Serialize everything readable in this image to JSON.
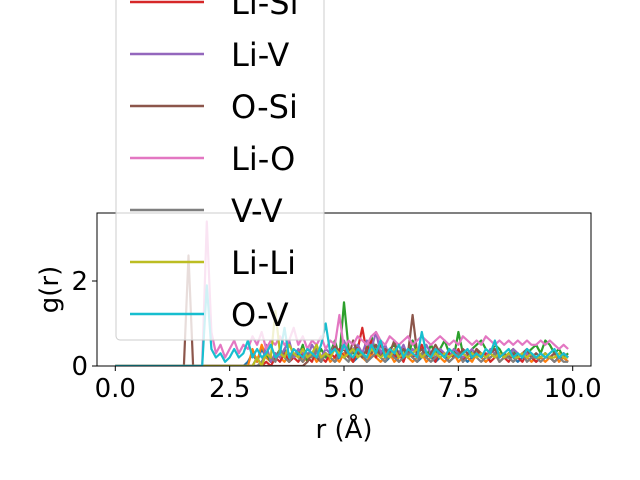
{
  "chart_data": {
    "type": "line",
    "title": "",
    "xlabel": "r (Å)",
    "ylabel": "g(r)",
    "xlim": [
      -0.4,
      10.4
    ],
    "ylim": [
      0,
      3.6
    ],
    "grid": false,
    "legend": {
      "placement": "upper-left, overflowing top of plot, frame clipped at image top"
    },
    "x_ticks": [
      "0.0",
      "2.5",
      "5.0",
      "7.5",
      "10.0"
    ],
    "x_tick_values": [
      0,
      2.5,
      5,
      7.5,
      10
    ],
    "y_ticks": [
      "0",
      "2"
    ],
    "y_tick_values": [
      0,
      2
    ],
    "x": [
      0.0,
      0.5,
      1.0,
      1.5,
      1.6,
      1.7,
      1.8,
      1.9,
      2.0,
      2.1,
      2.2,
      2.3,
      2.4,
      2.5,
      2.6,
      2.7,
      2.8,
      2.9,
      3.0,
      3.1,
      3.2,
      3.3,
      3.4,
      3.5,
      3.6,
      3.7,
      3.8,
      3.9,
      4.0,
      4.1,
      4.2,
      4.3,
      4.4,
      4.5,
      4.6,
      4.7,
      4.8,
      4.9,
      5.0,
      5.1,
      5.2,
      5.3,
      5.4,
      5.5,
      5.6,
      5.7,
      5.8,
      5.9,
      6.0,
      6.1,
      6.2,
      6.3,
      6.4,
      6.5,
      6.6,
      6.7,
      6.8,
      6.9,
      7.0,
      7.1,
      7.2,
      7.3,
      7.4,
      7.5,
      7.6,
      7.7,
      7.8,
      7.9,
      8.0,
      8.1,
      8.2,
      8.3,
      8.4,
      8.5,
      8.6,
      8.7,
      8.8,
      8.9,
      9.0,
      9.1,
      9.2,
      9.3,
      9.4,
      9.5,
      9.6,
      9.7,
      9.8,
      9.9
    ],
    "series": [
      {
        "name": "",
        "color": "#1f77b4",
        "values": [
          0,
          0,
          0,
          0,
          0,
          0,
          0,
          0,
          0,
          0,
          0,
          0,
          0,
          0,
          0,
          0,
          0,
          0.1,
          0.3,
          0.1,
          0.4,
          0.2,
          0.1,
          0.3,
          0.2,
          0.4,
          0.1,
          0.2,
          0.3,
          0.1,
          0.2,
          0.3,
          0.2,
          0.1,
          0.3,
          0.2,
          0.1,
          0.2,
          0.3,
          0.2,
          0.1,
          0.2,
          0.3,
          0.1,
          0.2,
          0.3,
          0.2,
          0.1,
          0.2,
          0.3,
          0.1,
          0.2,
          0.3,
          0.2,
          0.1,
          0.2,
          0.3,
          0.2,
          0.1,
          0.2,
          0.3,
          0.1,
          0.2,
          0.3,
          0.2,
          0.1,
          0.2,
          0.3,
          0.2,
          0.1,
          0.2,
          0.3,
          0.1,
          0.2,
          0.3,
          0.2,
          0.1,
          0.2,
          0.3,
          0.2,
          0.1,
          0.2,
          0.3,
          0.2,
          0.1,
          0.2,
          0.2,
          0.1
        ]
      },
      {
        "name": "",
        "color": "#ff7f0e",
        "values": [
          0,
          0,
          0,
          0,
          0,
          0,
          0,
          0,
          0,
          0,
          0,
          0,
          0,
          0,
          0,
          0,
          0,
          0,
          0.4,
          0.1,
          0.5,
          0.2,
          0.1,
          0.3,
          0.2,
          0.1,
          0.3,
          0.2,
          0.4,
          0.1,
          0.2,
          0.3,
          0.1,
          0.2,
          0.3,
          0.1,
          0.2,
          0.1,
          0.3,
          0.2,
          0.1,
          0.4,
          0.2,
          0.1,
          0.3,
          0.2,
          0.1,
          0.2,
          0.3,
          0.1,
          0.2,
          0.3,
          0.2,
          0.1,
          0.2,
          0.3,
          0.1,
          0.2,
          0.3,
          0.2,
          0.1,
          0.2,
          0.3,
          0.1,
          0.2,
          0.2,
          0.1,
          0.3,
          0.2,
          0.1,
          0.2,
          0.3,
          0.1,
          0.2,
          0.2,
          0.1,
          0.2,
          0.3,
          0.2,
          0.1,
          0.2,
          0.2,
          0.1,
          0.2,
          0.3,
          0.1,
          0.2,
          0.1
        ]
      },
      {
        "name": "",
        "color": "#2ca02c",
        "values": [
          0,
          0,
          0,
          0,
          0,
          0,
          0,
          0,
          0,
          0,
          0,
          0,
          0,
          0,
          0,
          0,
          0,
          0,
          0,
          0.2,
          0,
          0.3,
          0.1,
          0.2,
          0.4,
          0.2,
          0.1,
          0.3,
          0.2,
          0.5,
          0.1,
          0.3,
          0.2,
          0.4,
          0.2,
          0.3,
          0.6,
          0.2,
          1.5,
          0.4,
          0.3,
          0.5,
          0.2,
          0.4,
          0.7,
          0.3,
          0.6,
          0.2,
          0.4,
          0.5,
          0.3,
          0.4,
          0.2,
          0.6,
          0.3,
          0.4,
          0.2,
          0.5,
          0.3,
          0.4,
          0.6,
          0.3,
          0.2,
          0.8,
          0.3,
          0.2,
          0.4,
          0.5,
          0.6,
          0.4,
          0.3,
          0.5,
          0.4,
          0.2,
          0.3,
          0.4,
          0.2,
          0.3,
          0.3,
          0.4,
          0.5,
          0.3,
          0.6,
          0.5,
          0.3,
          0.4,
          0.2,
          0.3
        ]
      },
      {
        "name": "Li-Si",
        "color": "#d62728",
        "values": [
          0,
          0,
          0,
          0,
          0,
          0,
          0,
          0,
          0,
          0,
          0,
          0,
          0,
          0,
          0,
          0,
          0,
          0,
          0,
          0,
          0,
          0.1,
          0,
          0.2,
          0.1,
          0.3,
          0.1,
          0.2,
          0.1,
          0.3,
          0.2,
          0.1,
          0.4,
          0.2,
          0.1,
          0.3,
          0.2,
          0.4,
          0.2,
          0.3,
          0.1,
          0.4,
          0.9,
          0.3,
          0.6,
          0.2,
          0.5,
          0.3,
          0.4,
          0.2,
          0.3,
          0.1,
          0.4,
          0.2,
          0.3,
          0.5,
          0.2,
          0.3,
          0.1,
          0.4,
          0.2,
          0.3,
          0.2,
          0.4,
          0.1,
          0.3,
          0.2,
          0.4,
          0.2,
          0.3,
          0.1,
          0.2,
          0.3,
          0.2,
          0.1,
          0.3,
          0.2,
          0.1,
          0.3,
          0.2,
          0.1,
          0.2,
          0.3,
          0.2,
          0.1,
          0.2,
          0.3,
          0.2
        ]
      },
      {
        "name": "Li-V",
        "color": "#9467bd",
        "values": [
          0,
          0,
          0,
          0,
          0,
          0,
          0,
          0,
          0,
          0,
          0,
          0,
          0,
          0,
          0,
          0,
          0,
          0,
          0,
          0.2,
          0,
          0.5,
          0.1,
          0.3,
          0.2,
          0.4,
          0.6,
          0.2,
          0.4,
          0.3,
          0.2,
          0.5,
          0.3,
          0.2,
          0.4,
          0.3,
          0.5,
          0.2,
          0.6,
          0.3,
          0.4,
          0.5,
          0.3,
          0.6,
          0.4,
          0.8,
          0.3,
          0.5,
          0.2,
          0.4,
          0.3,
          0.5,
          0.2,
          0.4,
          0.3,
          0.2,
          0.5,
          0.3,
          0.2,
          0.4,
          0.3,
          0.2,
          0.4,
          0.3,
          0.2,
          0.3,
          0.4,
          0.2,
          0.3,
          0.2,
          0.4,
          0.3,
          0.2,
          0.3,
          0.2,
          0.4,
          0.3,
          0.2,
          0.3,
          0.2,
          0.3,
          0.2,
          0.3,
          0.2,
          0.3,
          0.2,
          0.3,
          0.2
        ]
      },
      {
        "name": "O-Si",
        "color": "#8c564b",
        "values": [
          0,
          0,
          0,
          0,
          2.6,
          0,
          0,
          0,
          0,
          0,
          0,
          0,
          0,
          0,
          0,
          0,
          0,
          0,
          0,
          0,
          0,
          0,
          0,
          0,
          0,
          0,
          0,
          0,
          0,
          0,
          0.1,
          0.3,
          0.2,
          0.1,
          0.3,
          0.2,
          0.5,
          0.3,
          0.4,
          0.2,
          0.6,
          0.3,
          0.2,
          0.4,
          0.3,
          0.5,
          0.2,
          0.4,
          0.3,
          0.6,
          0.2,
          0.4,
          0.3,
          1.2,
          0.3,
          0.4,
          0.2,
          0.3,
          0.5,
          0.3,
          0.2,
          0.4,
          0.3,
          0.2,
          0.4,
          0.3,
          0.2,
          0.4,
          0.3,
          0.2,
          0.3,
          0.4,
          0.2,
          0.3,
          0.2,
          0.3,
          0.2,
          0.3,
          0.4,
          0.2,
          0.3,
          0.2,
          0.3,
          0.2,
          0.3,
          0.2,
          0.3,
          0.2
        ]
      },
      {
        "name": "Li-O",
        "color": "#e377c2",
        "values": [
          0,
          0,
          0,
          0,
          0,
          0,
          0,
          0,
          3.4,
          0.8,
          0.3,
          0.5,
          0.2,
          0.4,
          0.6,
          0.3,
          0.5,
          0.4,
          0.7,
          0.5,
          0.8,
          0.4,
          0.6,
          0.5,
          0.7,
          0.5,
          0.6,
          0.9,
          0.5,
          0.7,
          0.4,
          0.6,
          0.5,
          0.7,
          0.4,
          0.6,
          0.5,
          1.2,
          0.4,
          0.6,
          0.5,
          0.7,
          0.6,
          0.5,
          0.7,
          0.8,
          0.6,
          0.5,
          0.7,
          0.6,
          0.5,
          0.6,
          0.7,
          0.5,
          0.6,
          0.7,
          0.6,
          0.5,
          0.6,
          0.7,
          0.6,
          0.5,
          0.6,
          0.5,
          0.7,
          0.6,
          0.5,
          0.6,
          0.5,
          0.7,
          0.6,
          0.5,
          0.6,
          0.5,
          0.6,
          0.5,
          0.6,
          0.5,
          0.6,
          0.5,
          0.5,
          0.6,
          0.5,
          0.6,
          0.5,
          0.4,
          0.5,
          0.4
        ]
      },
      {
        "name": "V-V",
        "color": "#7f7f7f",
        "values": [
          0,
          0,
          0,
          0,
          0,
          0,
          0,
          0,
          0,
          0,
          0,
          0,
          0,
          0,
          0,
          0,
          0,
          0,
          0,
          0,
          0.1,
          0.3,
          0.2,
          0.1,
          0.4,
          0.2,
          0.1,
          0.3,
          0.2,
          0.1,
          0.3,
          0.2,
          0.4,
          0.1,
          0.3,
          0.2,
          0.1,
          0.3,
          0.2,
          0.1,
          0.4,
          0.2,
          0.3,
          0.1,
          0.2,
          0.3,
          0.2,
          0.1,
          0.3,
          0.2,
          0.1,
          0.2,
          0.3,
          0.2,
          0.1,
          0.3,
          0.2,
          0.1,
          0.2,
          0.3,
          0.2,
          0.1,
          0.2,
          0.3,
          0.1,
          0.2,
          0.3,
          0.2,
          0.1,
          0.2,
          0.2,
          0.3,
          0.1,
          0.2,
          0.2,
          0.1,
          0.2,
          0.3,
          0.1,
          0.2,
          0.2,
          0.1,
          0.2,
          0.2,
          0.1,
          0.2,
          0.1,
          0.1
        ]
      },
      {
        "name": "Li-Li",
        "color": "#bcbd22",
        "values": [
          0,
          0,
          0,
          0,
          0,
          0,
          0,
          0,
          0,
          0,
          0,
          0,
          0,
          0,
          0,
          0,
          0,
          0,
          0,
          0.2,
          0,
          0.3,
          0.2,
          1.3,
          0.3,
          0.2,
          0.5,
          0.3,
          0.2,
          0.4,
          0.2,
          0.3,
          0.5,
          0.2,
          0.3,
          0.2,
          0.4,
          0.3,
          0.2,
          0.3,
          0.4,
          0.2,
          0.3,
          0.2,
          0.4,
          0.3,
          0.2,
          0.3,
          0.2,
          0.4,
          0.2,
          0.3,
          0.2,
          0.3,
          0.4,
          0.2,
          0.3,
          0.2,
          0.3,
          0.2,
          0.3,
          0.2,
          0.3,
          0.2,
          0.3,
          0.2,
          0.3,
          0.2,
          0.3,
          0.2,
          0.3,
          0.2,
          0.3,
          0.2,
          0.3,
          0.2,
          0.2,
          0.3,
          0.2,
          0.3,
          0.2,
          0.2,
          0.3,
          0.2,
          0.2,
          0.3,
          0.2,
          0.2
        ]
      },
      {
        "name": "O-V",
        "color": "#17becf",
        "values": [
          0,
          0,
          0,
          0,
          0,
          0,
          0,
          0,
          1.9,
          0.4,
          0.2,
          0.3,
          0.1,
          0.2,
          0.4,
          0.2,
          0.3,
          0.6,
          0.2,
          0.4,
          0.2,
          0.3,
          0.5,
          0.2,
          0.3,
          0.9,
          0.2,
          0.4,
          0.3,
          0.2,
          0.4,
          0.3,
          0.2,
          0.5,
          1.0,
          0.3,
          0.4,
          0.2,
          0.5,
          0.3,
          0.2,
          0.4,
          0.3,
          0.2,
          0.5,
          0.3,
          0.6,
          0.2,
          0.4,
          0.3,
          0.5,
          0.2,
          0.4,
          0.3,
          0.2,
          0.8,
          0.3,
          0.2,
          0.4,
          0.3,
          0.2,
          0.4,
          0.3,
          0.2,
          0.3,
          0.4,
          0.2,
          0.3,
          0.2,
          0.4,
          0.3,
          0.6,
          0.2,
          0.3,
          0.4,
          0.2,
          0.3,
          0.2,
          0.4,
          0.3,
          0.2,
          0.3,
          0.2,
          0.3,
          0.4,
          0.2,
          0.3,
          0.2
        ]
      }
    ]
  }
}
